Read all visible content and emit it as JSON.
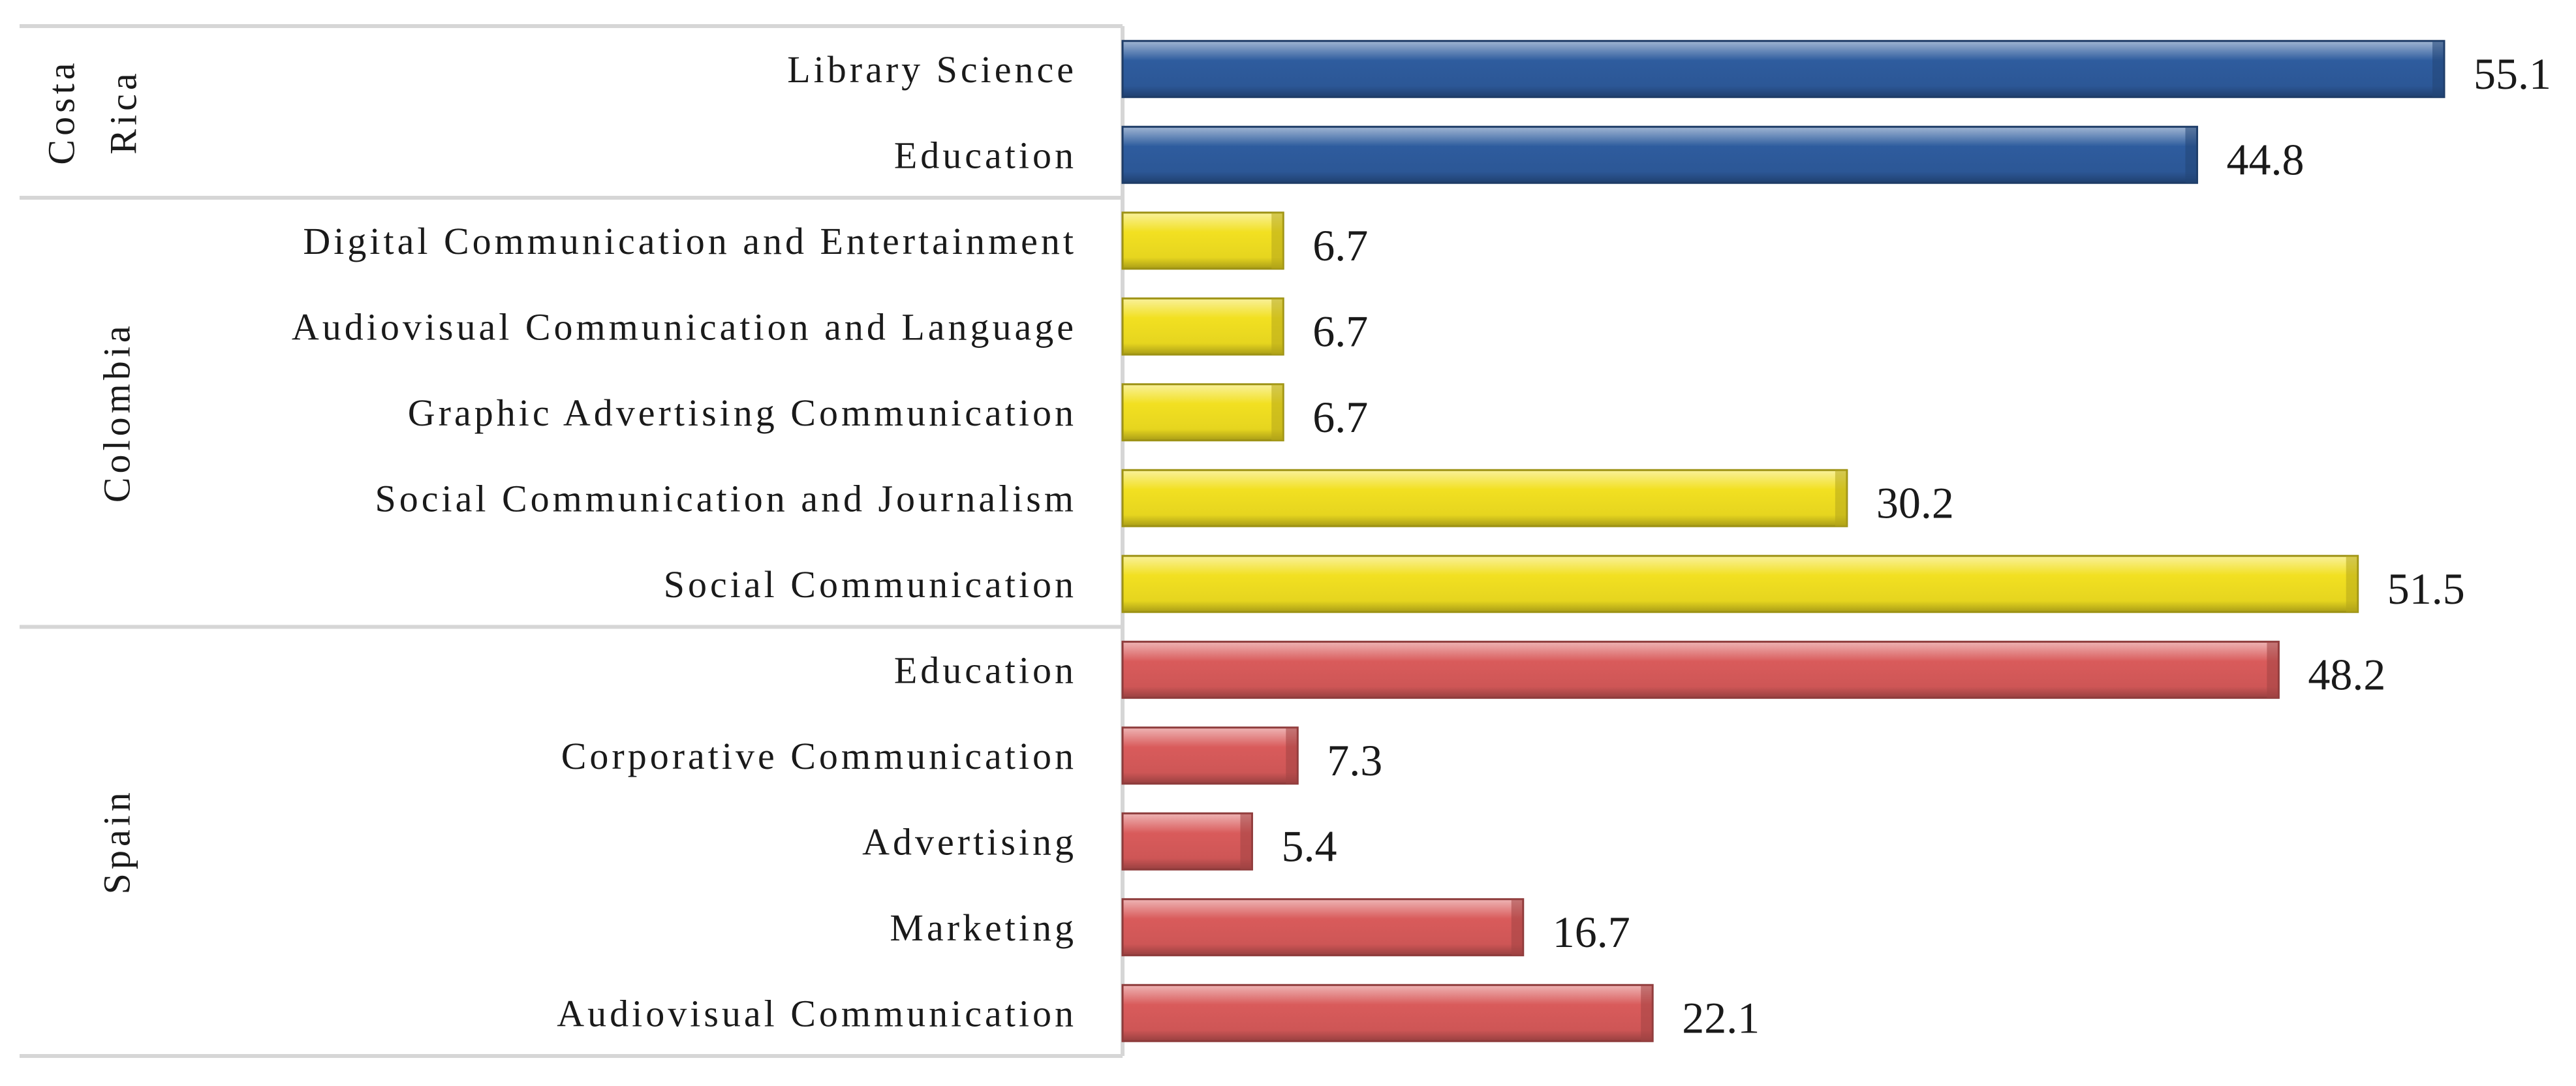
{
  "chart_data": {
    "type": "bar",
    "orientation": "horizontal",
    "xlim": [
      0,
      55.1
    ],
    "grid": false,
    "legend": "none",
    "groups": [
      {
        "name": "Costa Rica",
        "name_lines": [
          "Costa",
          "Rica"
        ],
        "color": "#2E5C9E",
        "categories": [
          "Library Science",
          "Education"
        ],
        "values": [
          55.1,
          44.8
        ]
      },
      {
        "name": "Colombia",
        "color": "#F2E021",
        "categories": [
          "Digital Communication and Entertainment",
          "Audiovisual Communication and Language",
          "Graphic Advertising Communication",
          "Social Communication and Journalism",
          "Social Communication"
        ],
        "values": [
          6.7,
          6.7,
          6.7,
          30.2,
          51.5
        ]
      },
      {
        "name": "Spain",
        "color": "#D95B5B",
        "categories": [
          "Education",
          "Corporative Communication",
          "Advertising",
          "Marketing",
          "Audiovisual Communication"
        ],
        "values": [
          48.2,
          7.3,
          5.4,
          16.7,
          22.1
        ]
      }
    ]
  }
}
